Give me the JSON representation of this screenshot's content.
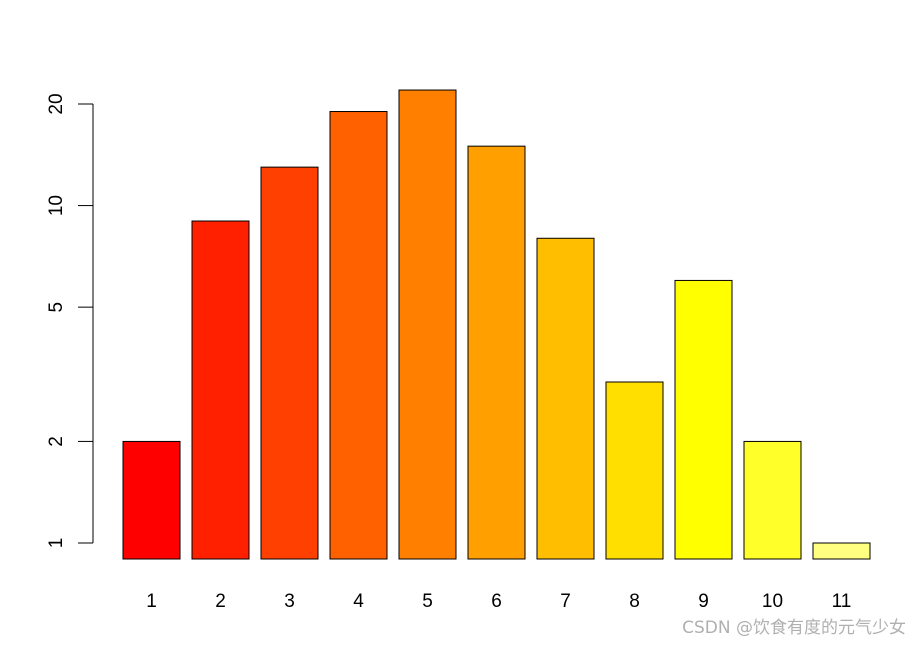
{
  "chart_data": {
    "type": "bar",
    "log_scale_y": true,
    "categories": [
      "1",
      "2",
      "3",
      "4",
      "5",
      "6",
      "7",
      "8",
      "9",
      "10",
      "11"
    ],
    "values": [
      2,
      9,
      13,
      19,
      22,
      15,
      8,
      3,
      6,
      2,
      1
    ],
    "colors": [
      "#FF0000",
      "#FF2000",
      "#FF4000",
      "#FF6000",
      "#FF8000",
      "#FF9F00",
      "#FFBF00",
      "#FFDF00",
      "#FFFF00",
      "#FFFF2A",
      "#FFFF80"
    ],
    "y_ticks": [
      1,
      2,
      5,
      10,
      20
    ],
    "ylim": [
      0.86,
      26
    ],
    "title": "",
    "xlabel": "",
    "ylabel": "",
    "grid": false
  },
  "watermark": "CSDN @饮食有度的元气少女"
}
